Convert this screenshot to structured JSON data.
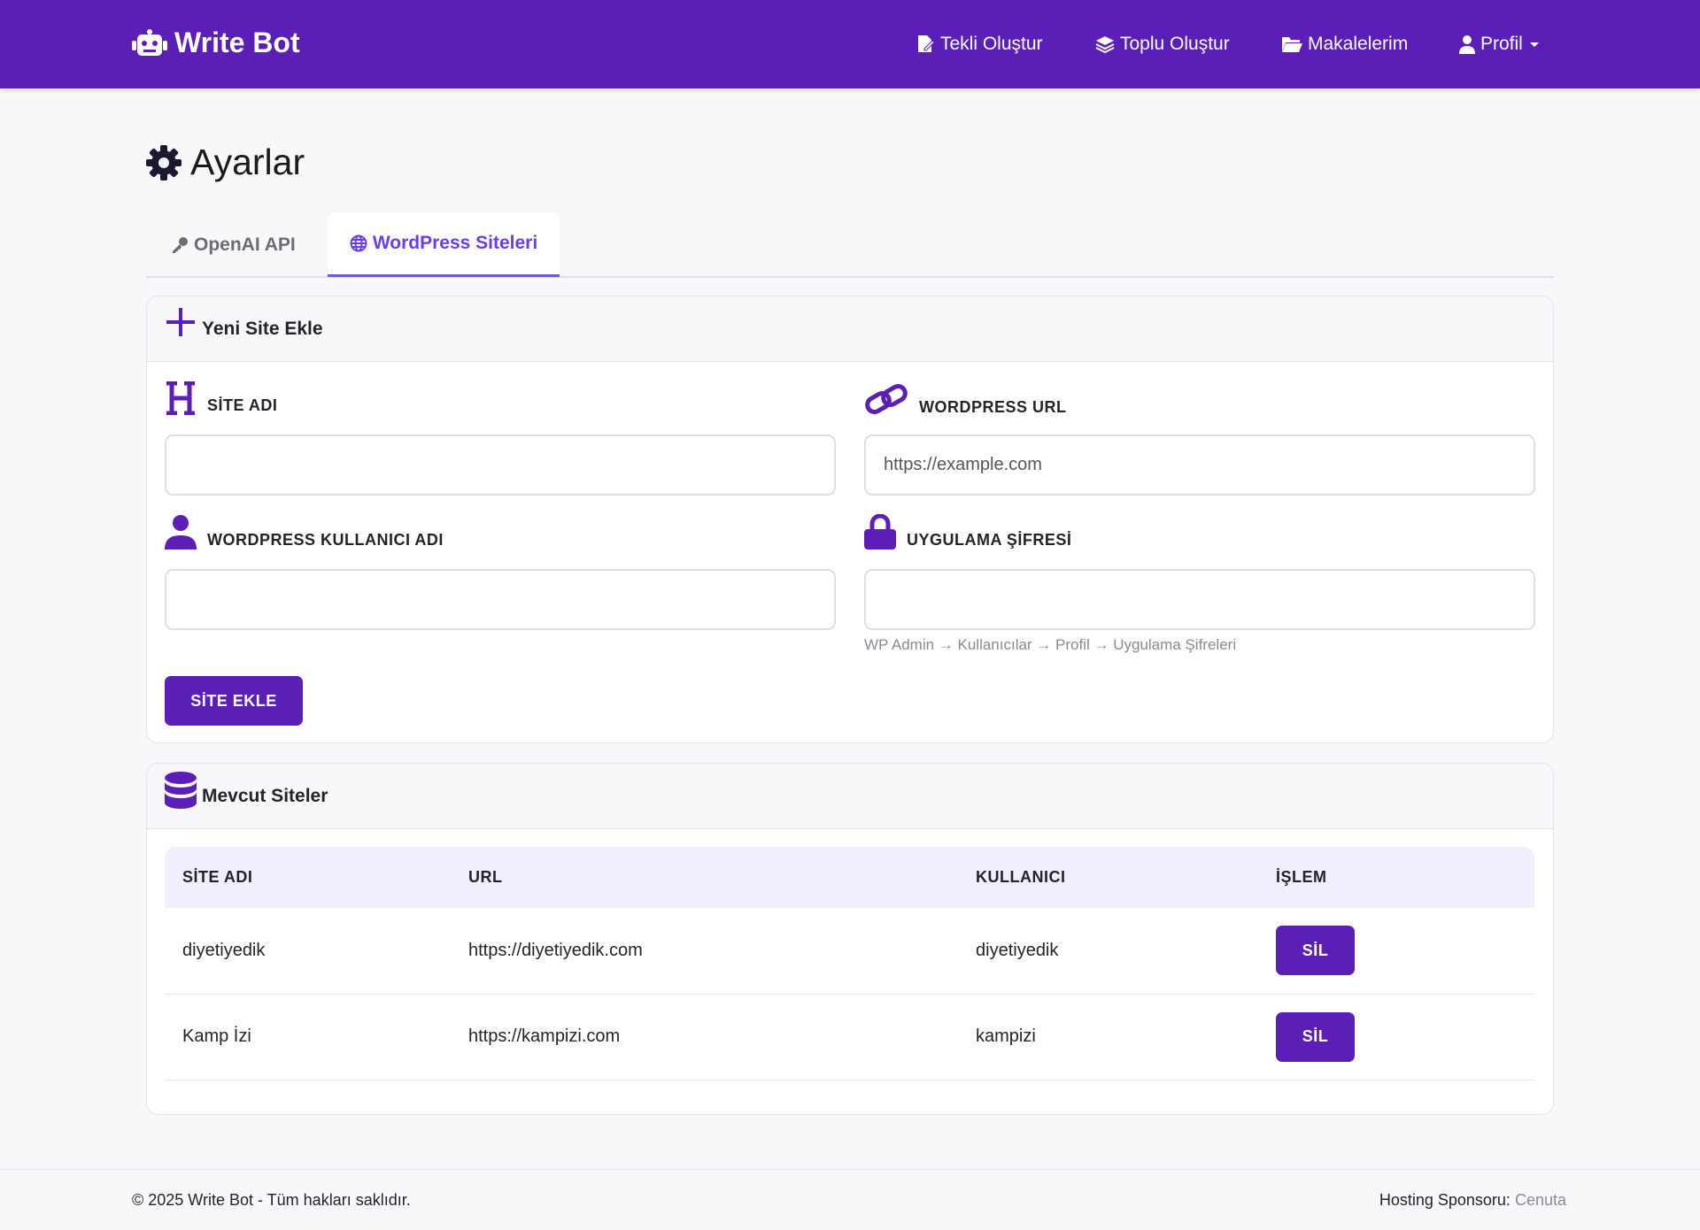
{
  "navbar": {
    "brand": "Write Bot",
    "items": [
      "Tekli Oluştur",
      "Toplu Oluştur",
      "Makalelerim",
      "Profil"
    ]
  },
  "page": {
    "title": "Ayarlar",
    "tabs": [
      "OpenAI API",
      "WordPress Siteleri"
    ]
  },
  "form_card": {
    "title": "Yeni Site Ekle",
    "fields": [
      {
        "label": "SİTE ADI"
      },
      {
        "label": "WORDPRESS URL",
        "placeholder": "https://example.com"
      },
      {
        "label": "WORDPRESS KULLANICI ADI"
      },
      {
        "label": "UYGULAMA ŞİFRESİ",
        "help": "WP Admin → Kullanıcılar → Profil → Uygulama Şifreleri"
      }
    ],
    "button": "SİTE EKLE"
  },
  "sites_card": {
    "title": "Mevcut Siteler",
    "table": {
      "headers": [
        "SİTE ADI",
        "URL",
        "KULLANICI",
        "İŞLEM"
      ],
      "rows": [
        [
          "diyetiyedik",
          "https://diyetiyedik.com",
          "diyetiyedik",
          "SİL"
        ],
        [
          "Kamp İzi",
          "https://kampizi.com",
          "kampizi",
          "SİL"
        ]
      ]
    }
  },
  "footer": {
    "copyright": "© 2025 Write Bot - Tüm hakları saklıdır.",
    "sponsor_label": "Hosting Sponsoru:",
    "sponsor": "Cenuta"
  }
}
